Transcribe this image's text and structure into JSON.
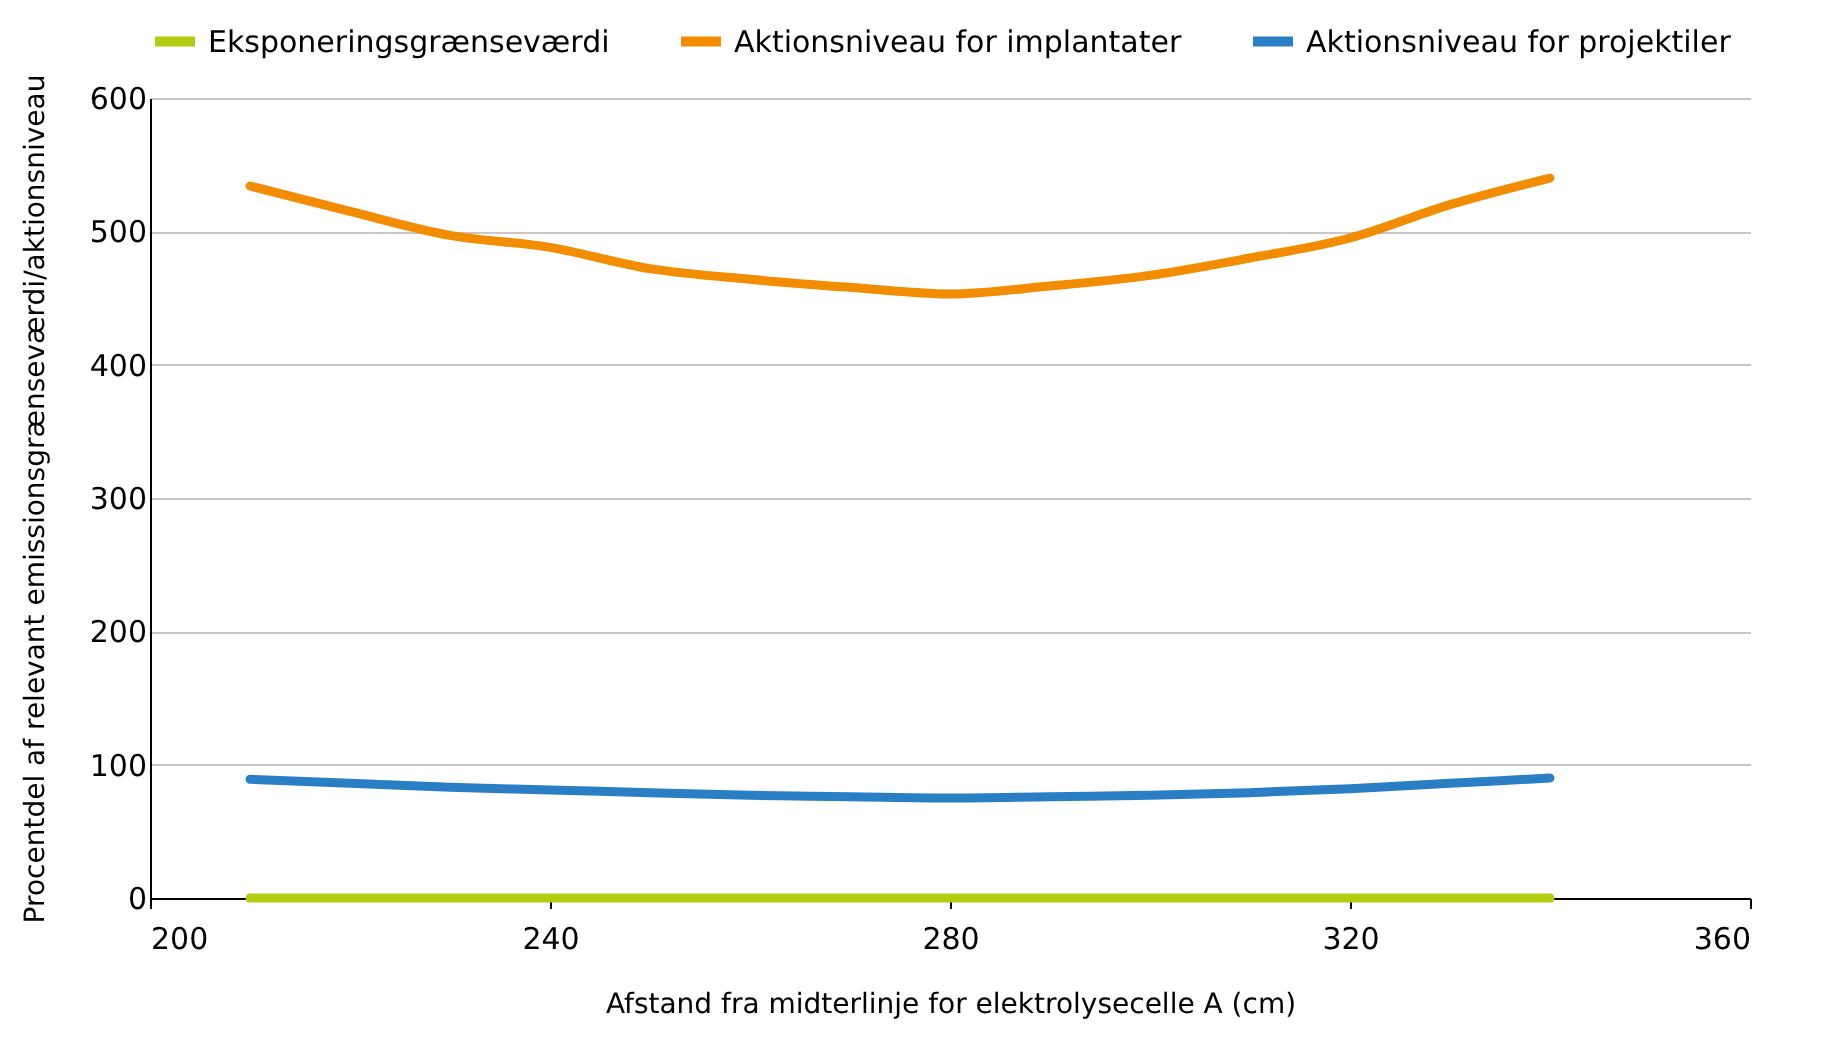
{
  "chart_data": {
    "type": "line",
    "xlabel": "Afstand fra midterlinje for elektrolysecelle A (cm)",
    "ylabel": "Procentdel af relevant emissionsgrænseværdi/aktionsniveau",
    "x": [
      210,
      220,
      230,
      240,
      250,
      260,
      270,
      280,
      290,
      300,
      310,
      320,
      330,
      340
    ],
    "series": [
      {
        "name": "Eksponeringsgrænseværdi",
        "color": "#b2cc12",
        "values": [
          0,
          0,
          0,
          0,
          0,
          0,
          0,
          0,
          0,
          0,
          0,
          0,
          0,
          0
        ]
      },
      {
        "name": "Aktionsniveau for implantater",
        "color": "#f28c00",
        "values": [
          534,
          515,
          497,
          488,
          472,
          464,
          458,
          453,
          459,
          467,
          480,
          495,
          520,
          540
        ]
      },
      {
        "name": "Aktionsniveau for projektiler",
        "color": "#2a7fc4",
        "values": [
          89,
          86,
          83,
          81,
          79,
          77,
          76,
          75,
          76,
          77,
          79,
          82,
          86,
          90
        ]
      }
    ],
    "xlim": [
      200,
      360
    ],
    "xticks": [
      200,
      240,
      280,
      320,
      360
    ],
    "ylim": [
      0,
      600
    ],
    "yticks": [
      0,
      100,
      200,
      300,
      400,
      500,
      600
    ],
    "grid": "y",
    "legend": "top",
    "line_style": "solid",
    "marker": "none"
  }
}
